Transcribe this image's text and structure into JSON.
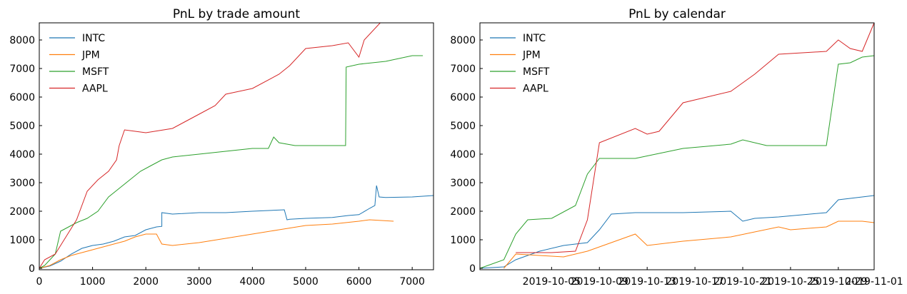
{
  "chart_data": [
    {
      "type": "line",
      "title": "PnL by trade amount",
      "xlabel": "",
      "ylabel": "",
      "xlim": [
        0,
        7400
      ],
      "ylim": [
        -50,
        8600
      ],
      "xticks": [
        0,
        1000,
        2000,
        3000,
        4000,
        5000,
        6000,
        7000
      ],
      "yticks": [
        0,
        1000,
        2000,
        3000,
        4000,
        5000,
        6000,
        7000,
        8000
      ],
      "legend": "top-left",
      "series": [
        {
          "name": "INTC",
          "color": "#1f77b4",
          "points": [
            [
              0,
              0
            ],
            [
              200,
              80
            ],
            [
              400,
              250
            ],
            [
              600,
              500
            ],
            [
              800,
              700
            ],
            [
              1000,
              800
            ],
            [
              1200,
              850
            ],
            [
              1400,
              950
            ],
            [
              1600,
              1100
            ],
            [
              1800,
              1150
            ],
            [
              2000,
              1350
            ],
            [
              2200,
              1450
            ],
            [
              2300,
              1470
            ],
            [
              2301,
              1950
            ],
            [
              2500,
              1900
            ],
            [
              3000,
              1950
            ],
            [
              3500,
              1950
            ],
            [
              4000,
              2000
            ],
            [
              4600,
              2050
            ],
            [
              4650,
              1700
            ],
            [
              4700,
              1720
            ],
            [
              5000,
              1750
            ],
            [
              5500,
              1780
            ],
            [
              5800,
              1850
            ],
            [
              6000,
              1880
            ],
            [
              6200,
              2100
            ],
            [
              6300,
              2200
            ],
            [
              6330,
              2900
            ],
            [
              6380,
              2500
            ],
            [
              6500,
              2480
            ],
            [
              7000,
              2500
            ],
            [
              7400,
              2550
            ]
          ]
        },
        {
          "name": "JPM",
          "color": "#ff7f0e",
          "points": [
            [
              0,
              0
            ],
            [
              200,
              100
            ],
            [
              400,
              300
            ],
            [
              600,
              450
            ],
            [
              800,
              550
            ],
            [
              1000,
              650
            ],
            [
              1200,
              750
            ],
            [
              1400,
              850
            ],
            [
              1600,
              950
            ],
            [
              1800,
              1100
            ],
            [
              2000,
              1200
            ],
            [
              2200,
              1200
            ],
            [
              2300,
              850
            ],
            [
              2500,
              800
            ],
            [
              3000,
              900
            ],
            [
              3500,
              1050
            ],
            [
              4000,
              1200
            ],
            [
              4500,
              1350
            ],
            [
              5000,
              1500
            ],
            [
              5500,
              1550
            ],
            [
              6000,
              1650
            ],
            [
              6200,
              1700
            ],
            [
              6650,
              1650
            ]
          ]
        },
        {
          "name": "MSFT",
          "color": "#2ca02c",
          "points": [
            [
              0,
              0
            ],
            [
              100,
              100
            ],
            [
              300,
              500
            ],
            [
              400,
              1300
            ],
            [
              500,
              1400
            ],
            [
              700,
              1600
            ],
            [
              900,
              1750
            ],
            [
              1100,
              2000
            ],
            [
              1300,
              2500
            ],
            [
              1500,
              2800
            ],
            [
              1700,
              3100
            ],
            [
              1900,
              3400
            ],
            [
              2100,
              3600
            ],
            [
              2300,
              3800
            ],
            [
              2500,
              3900
            ],
            [
              3000,
              4000
            ],
            [
              3500,
              4100
            ],
            [
              4000,
              4200
            ],
            [
              4300,
              4200
            ],
            [
              4400,
              4600
            ],
            [
              4500,
              4400
            ],
            [
              4800,
              4300
            ],
            [
              5000,
              4300
            ],
            [
              5500,
              4300
            ],
            [
              5750,
              4300
            ],
            [
              5760,
              7050
            ],
            [
              6000,
              7150
            ],
            [
              6500,
              7250
            ],
            [
              7000,
              7450
            ],
            [
              7200,
              7450
            ]
          ]
        },
        {
          "name": "AAPL",
          "color": "#d62728",
          "points": [
            [
              0,
              0
            ],
            [
              100,
              300
            ],
            [
              300,
              500
            ],
            [
              500,
              1100
            ],
            [
              700,
              1700
            ],
            [
              900,
              2700
            ],
            [
              1100,
              3100
            ],
            [
              1300,
              3400
            ],
            [
              1450,
              3800
            ],
            [
              1500,
              4300
            ],
            [
              1600,
              4850
            ],
            [
              1800,
              4800
            ],
            [
              2000,
              4750
            ],
            [
              2500,
              4900
            ],
            [
              2700,
              5100
            ],
            [
              3000,
              5400
            ],
            [
              3300,
              5700
            ],
            [
              3500,
              6100
            ],
            [
              4000,
              6300
            ],
            [
              4500,
              6800
            ],
            [
              4700,
              7100
            ],
            [
              5000,
              7700
            ],
            [
              5500,
              7800
            ],
            [
              5800,
              7900
            ],
            [
              6000,
              7400
            ],
            [
              6100,
              8000
            ],
            [
              6400,
              8600
            ]
          ]
        }
      ]
    },
    {
      "type": "line",
      "title": "PnL by calendar",
      "xlabel": "",
      "ylabel": "",
      "xlim": [
        "2019-09-29",
        "2019-11-01"
      ],
      "ylim": [
        -50,
        8600
      ],
      "xticks": [
        "2019-10-05",
        "2019-10-09",
        "2019-10-13",
        "2019-10-17",
        "2019-10-21",
        "2019-10-25",
        "2019-10-29",
        "2019-11-01"
      ],
      "xticklabels": [
        "2019-10-05",
        "2019-10-09",
        "2019-10-13",
        "2019-10-17",
        "2019-10-21",
        "2019-10-25",
        "2019-10-29",
        "2019-11-01"
      ],
      "yticks": [
        0,
        1000,
        2000,
        3000,
        4000,
        5000,
        6000,
        7000,
        8000
      ],
      "legend": "top-left",
      "series": [
        {
          "name": "INTC",
          "color": "#1f77b4",
          "points": [
            [
              "2019-09-29",
              0
            ],
            [
              "2019-10-01",
              50
            ],
            [
              "2019-10-02",
              300
            ],
            [
              "2019-10-04",
              600
            ],
            [
              "2019-10-06",
              800
            ],
            [
              "2019-10-08",
              900
            ],
            [
              "2019-10-09",
              1350
            ],
            [
              "2019-10-10",
              1900
            ],
            [
              "2019-10-12",
              1950
            ],
            [
              "2019-10-16",
              1950
            ],
            [
              "2019-10-20",
              2000
            ],
            [
              "2019-10-21",
              1650
            ],
            [
              "2019-10-22",
              1750
            ],
            [
              "2019-10-24",
              1800
            ],
            [
              "2019-10-28",
              1950
            ],
            [
              "2019-10-29",
              2400
            ],
            [
              "2019-10-31",
              2500
            ],
            [
              "2019-11-01",
              2550
            ]
          ]
        },
        {
          "name": "JPM",
          "color": "#ff7f0e",
          "points": [
            [
              "2019-10-01",
              0
            ],
            [
              "2019-10-02",
              500
            ],
            [
              "2019-10-04",
              450
            ],
            [
              "2019-10-06",
              400
            ],
            [
              "2019-10-08",
              600
            ],
            [
              "2019-10-10",
              900
            ],
            [
              "2019-10-12",
              1200
            ],
            [
              "2019-10-13",
              800
            ],
            [
              "2019-10-16",
              950
            ],
            [
              "2019-10-20",
              1100
            ],
            [
              "2019-10-24",
              1450
            ],
            [
              "2019-10-25",
              1350
            ],
            [
              "2019-10-28",
              1450
            ],
            [
              "2019-10-29",
              1650
            ],
            [
              "2019-10-31",
              1650
            ],
            [
              "2019-11-01",
              1600
            ]
          ]
        },
        {
          "name": "MSFT",
          "color": "#2ca02c",
          "points": [
            [
              "2019-09-29",
              0
            ],
            [
              "2019-10-01",
              300
            ],
            [
              "2019-10-02",
              1200
            ],
            [
              "2019-10-03",
              1700
            ],
            [
              "2019-10-05",
              1750
            ],
            [
              "2019-10-07",
              2200
            ],
            [
              "2019-10-08",
              3300
            ],
            [
              "2019-10-09",
              3850
            ],
            [
              "2019-10-12",
              3850
            ],
            [
              "2019-10-16",
              4200
            ],
            [
              "2019-10-20",
              4350
            ],
            [
              "2019-10-21",
              4500
            ],
            [
              "2019-10-23",
              4300
            ],
            [
              "2019-10-28",
              4300
            ],
            [
              "2019-10-29",
              7150
            ],
            [
              "2019-10-30",
              7200
            ],
            [
              "2019-10-31",
              7400
            ],
            [
              "2019-11-01",
              7450
            ]
          ]
        },
        {
          "name": "AAPL",
          "color": "#d62728",
          "points": [
            [
              "2019-10-02",
              550
            ],
            [
              "2019-10-05",
              550
            ],
            [
              "2019-10-07",
              600
            ],
            [
              "2019-10-08",
              1700
            ],
            [
              "2019-10-09",
              4400
            ],
            [
              "2019-10-12",
              4900
            ],
            [
              "2019-10-13",
              4700
            ],
            [
              "2019-10-14",
              4800
            ],
            [
              "2019-10-16",
              5800
            ],
            [
              "2019-10-20",
              6200
            ],
            [
              "2019-10-22",
              6800
            ],
            [
              "2019-10-24",
              7500
            ],
            [
              "2019-10-28",
              7600
            ],
            [
              "2019-10-29",
              8000
            ],
            [
              "2019-10-30",
              7700
            ],
            [
              "2019-10-31",
              7600
            ],
            [
              "2019-11-01",
              8600
            ]
          ]
        }
      ]
    }
  ]
}
